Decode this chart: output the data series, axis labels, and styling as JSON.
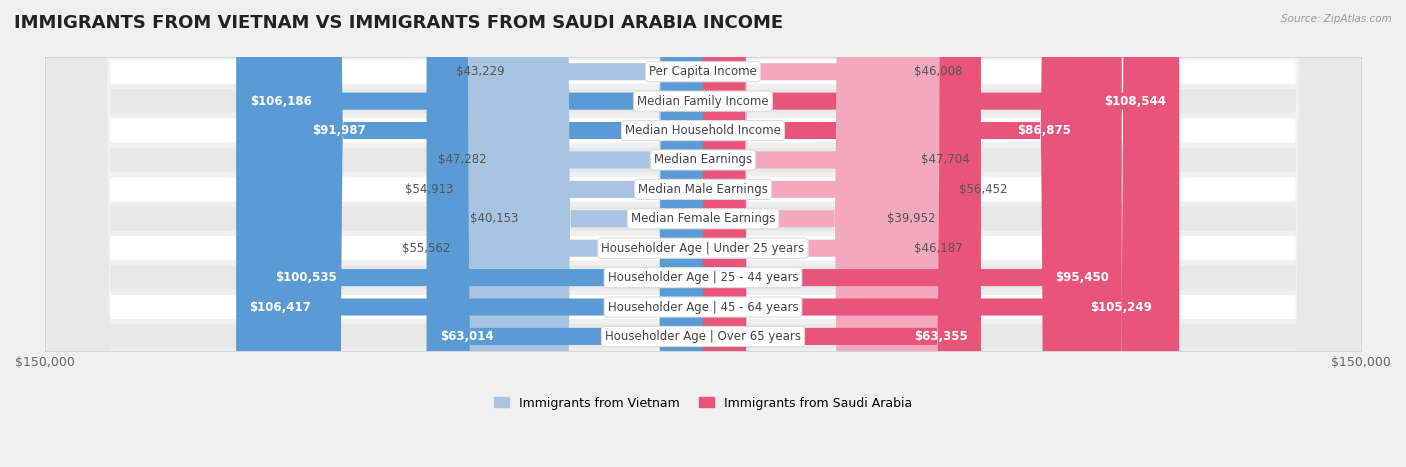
{
  "title": "IMMIGRANTS FROM VIETNAM VS IMMIGRANTS FROM SAUDI ARABIA INCOME",
  "source": "Source: ZipAtlas.com",
  "categories": [
    "Per Capita Income",
    "Median Family Income",
    "Median Household Income",
    "Median Earnings",
    "Median Male Earnings",
    "Median Female Earnings",
    "Householder Age | Under 25 years",
    "Householder Age | 25 - 44 years",
    "Householder Age | 45 - 64 years",
    "Householder Age | Over 65 years"
  ],
  "vietnam_values": [
    43229,
    106186,
    91987,
    47282,
    54913,
    40153,
    55562,
    100535,
    106417,
    63014
  ],
  "saudi_values": [
    46008,
    108544,
    86875,
    47704,
    56452,
    39952,
    46187,
    95450,
    105249,
    63355
  ],
  "vietnam_color_large": "#5b9bd5",
  "vietnam_color_small": "#a8c4e0",
  "saudi_color_large": "#e8547a",
  "saudi_color_small": "#f4a8bf",
  "bar_height": 0.58,
  "max_value": 150000,
  "bg_color": "#f0f0f0",
  "row_bg_color": "#ffffff",
  "row_alt_bg_color": "#e8e8e8",
  "title_fontsize": 13,
  "label_fontsize": 8.5,
  "value_fontsize": 8.5,
  "legend_fontsize": 9,
  "axis_fontsize": 9,
  "vietnam_threshold": 60000,
  "saudi_threshold": 60000
}
